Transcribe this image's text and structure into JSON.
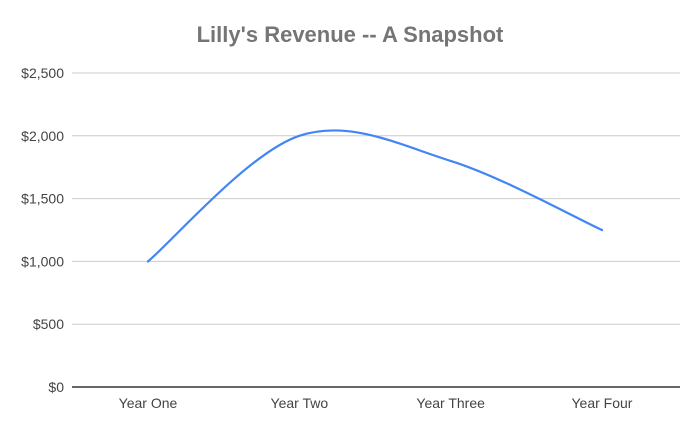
{
  "chart_data": {
    "type": "line",
    "title": "Lilly's Revenue -- A Snapshot",
    "xlabel": "",
    "ylabel": "",
    "categories": [
      "Year One",
      "Year Two",
      "Year Three",
      "Year Four"
    ],
    "y_ticks": [
      "$0",
      "$500",
      "$1,000",
      "$1,500",
      "$2,000",
      "$2,500"
    ],
    "ylim": [
      0,
      2500
    ],
    "y_tick_values": [
      0,
      500,
      1000,
      1500,
      2000,
      2500
    ],
    "grid": true,
    "smooth": true,
    "series": [
      {
        "values": [
          1000,
          2000,
          1800,
          1250
        ],
        "color": "#4285f4"
      }
    ]
  }
}
